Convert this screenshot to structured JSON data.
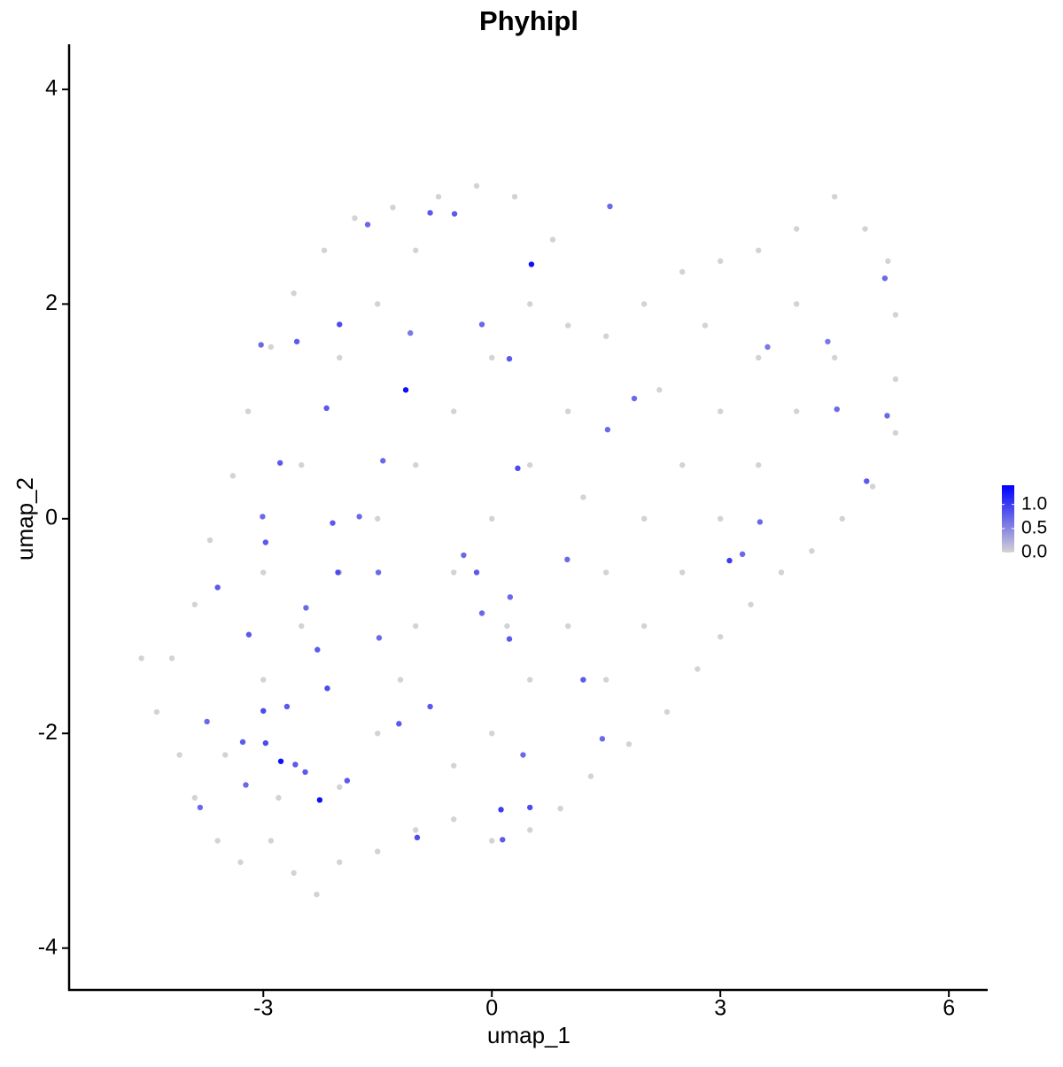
{
  "chart_data": {
    "type": "scatter",
    "title": "Phyhipl",
    "x_label": "umap_1",
    "y_label": "umap_2",
    "xlim": [
      -5.55,
      6.51
    ],
    "ylim": [
      -4.39,
      4.42
    ],
    "xticks": [
      -3,
      0,
      3,
      6
    ],
    "yticks": [
      -4,
      -2,
      0,
      2,
      4
    ],
    "x": [
      -4.6,
      -4.4,
      -4.1,
      -3.9,
      -3.6,
      -3.3,
      -2.9,
      -2.6,
      -2.3,
      -2.0,
      -1.5,
      -1.0,
      -0.5,
      0,
      0.5,
      0.9,
      1.3,
      1.8,
      2.3,
      2.7,
      3.0,
      3.4,
      3.8,
      4.2,
      4.6,
      5.0,
      5.3,
      5.3,
      5.3,
      5.2,
      4.9,
      4.5,
      4.0,
      3.5,
      3.0,
      2.5,
      2.0,
      1.5,
      1.0,
      0.8,
      0.3,
      -0.2,
      -0.7,
      -1.3,
      -1.8,
      -2.2,
      -2.6,
      -2.9,
      -3.2,
      -3.4,
      -3.7,
      -3.9,
      -4.2,
      -3.0,
      -2.5,
      -2.0,
      -1.5,
      -1.0,
      -0.5,
      0,
      0.5,
      -2.0,
      -1.5,
      -1.0,
      -2.5,
      -3.0,
      -1.0,
      -0.5,
      0,
      0.5,
      1.0,
      0.5,
      0,
      -0.5,
      -1.5,
      -2.0,
      1.0,
      1.5,
      2.0,
      2.5,
      3.0,
      3.5,
      4.0,
      4.5,
      4.0,
      3.5,
      3.0,
      2.5,
      2.0,
      1.5,
      2.2,
      2.8,
      1.2,
      0.2,
      -1.2,
      -3.5,
      -2.8,
      -0.81,
      -0.49,
      1.55,
      -1.63,
      -3.03,
      -2.56,
      -2.17,
      -2.78,
      -2.97,
      -3.6,
      -1.74,
      -0.2,
      -0.13,
      0.24,
      0.99,
      3.29,
      3.52,
      1.87,
      1.52,
      4.53,
      4.92,
      5.19,
      5.16,
      3.62,
      4.41,
      1.2,
      1.45,
      0.5,
      0.41,
      -0.98,
      0.14,
      -1.22,
      -1.9,
      -2.29,
      -2.69,
      -3.27,
      -3.74,
      -3.83,
      -2.16,
      -1.48,
      0.23,
      -0.37,
      -2.09,
      -1.49,
      0.23,
      -0.13,
      -1.07,
      -1.43,
      -3.01,
      -3.19,
      -2.44,
      -2.58,
      -3.23,
      -2.45,
      -2.0,
      -2.02,
      3.12,
      0.12,
      -2.97,
      -0.81,
      0.34,
      -3.0,
      -2.77,
      -2.26,
      -1.13,
      0.52
    ],
    "y": [
      -1.3,
      -1.8,
      -2.2,
      -2.6,
      -3.0,
      -3.2,
      -3.0,
      -3.3,
      -3.5,
      -3.2,
      -3.1,
      -2.9,
      -2.8,
      -3.0,
      -2.9,
      -2.7,
      -2.4,
      -2.1,
      -1.8,
      -1.4,
      -1.1,
      -0.8,
      -0.5,
      -0.3,
      0.0,
      0.3,
      0.8,
      1.3,
      1.9,
      2.4,
      2.7,
      3.0,
      2.7,
      2.5,
      2.4,
      2.3,
      2.0,
      1.7,
      1.8,
      2.6,
      3.0,
      3.1,
      3.0,
      2.9,
      2.8,
      2.5,
      2.1,
      1.6,
      1.0,
      0.4,
      -0.2,
      -0.8,
      -1.3,
      -1.5,
      -1.0,
      -0.5,
      0.0,
      0.5,
      1.0,
      1.5,
      2.0,
      1.5,
      2.0,
      2.5,
      0.5,
      -0.5,
      -1.0,
      -0.5,
      0,
      0.5,
      1.0,
      -1.5,
      -2.0,
      -2.3,
      -2.0,
      -2.5,
      -1.0,
      -0.5,
      0.0,
      0.5,
      1.0,
      1.5,
      2.0,
      1.5,
      1.0,
      0.5,
      0.0,
      -0.5,
      -1.0,
      -1.5,
      1.2,
      1.8,
      0.2,
      -1.0,
      -1.5,
      -2.2,
      -2.6,
      2.85,
      2.84,
      2.91,
      2.74,
      1.62,
      1.65,
      1.03,
      0.52,
      -0.22,
      -0.64,
      0.02,
      -0.5,
      -0.88,
      -0.73,
      -0.38,
      -0.33,
      -0.03,
      1.12,
      0.83,
      1.02,
      0.35,
      0.96,
      2.24,
      1.6,
      1.65,
      -1.5,
      -2.05,
      -2.69,
      -2.2,
      -2.97,
      -2.99,
      -1.91,
      -2.44,
      -1.22,
      -1.75,
      -2.08,
      -1.89,
      -2.69,
      -1.58,
      -1.11,
      -1.12,
      -0.34,
      -0.04,
      -0.5,
      1.49,
      1.81,
      1.73,
      0.54,
      0.02,
      -1.08,
      -0.83,
      -2.29,
      -2.48,
      -2.36,
      1.81,
      -0.5,
      -0.39,
      -2.71,
      -2.09,
      -1.75,
      0.47,
      -1.79,
      -2.26,
      -2.62,
      1.2,
      2.37
    ],
    "values": [
      0,
      0,
      0,
      0,
      0,
      0,
      0,
      0,
      0,
      0,
      0,
      0,
      0,
      0,
      0,
      0,
      0,
      0,
      0,
      0,
      0,
      0,
      0,
      0,
      0,
      0,
      0,
      0,
      0,
      0,
      0,
      0,
      0,
      0,
      0,
      0,
      0,
      0,
      0,
      0,
      0,
      0,
      0,
      0,
      0,
      0,
      0,
      0,
      0,
      0,
      0,
      0,
      0,
      0,
      0,
      0,
      0,
      0,
      0,
      0,
      0,
      0,
      0,
      0,
      0,
      0,
      0,
      0,
      0,
      0,
      0,
      0,
      0,
      0,
      0,
      0,
      0,
      0,
      0,
      0,
      0,
      0,
      0,
      0,
      0,
      0,
      0,
      0,
      0,
      0,
      0,
      0,
      0,
      0,
      0,
      0,
      0,
      0.8,
      0.8,
      0.7,
      0.7,
      0.7,
      0.8,
      0.8,
      0.8,
      0.8,
      0.8,
      0.7,
      0.8,
      0.7,
      0.7,
      0.7,
      0.7,
      0.7,
      0.7,
      0.7,
      0.7,
      0.8,
      0.7,
      0.7,
      0.6,
      0.6,
      0.8,
      0.7,
      0.9,
      0.7,
      0.9,
      0.8,
      0.8,
      0.8,
      0.8,
      0.8,
      0.8,
      0.7,
      0.7,
      0.9,
      0.7,
      0.8,
      0.7,
      0.8,
      0.7,
      0.8,
      0.7,
      0.6,
      0.7,
      0.7,
      0.8,
      0.7,
      0.8,
      0.7,
      0.8,
      0.9,
      0.9,
      1.0,
      1.0,
      0.9,
      0.8,
      0.9,
      0.9,
      1.3,
      1.3,
      1.3,
      1.3
    ],
    "colorbar": {
      "lim": [
        0,
        1.4
      ],
      "ticks": [
        {
          "value": 0,
          "label": "0.0"
        },
        {
          "value": 0.5,
          "label": "0.5"
        },
        {
          "value": 1,
          "label": "1.0"
        }
      ],
      "colors": [
        "#d3d3d3",
        "#0000ff"
      ]
    },
    "point_size": 3.2
  }
}
